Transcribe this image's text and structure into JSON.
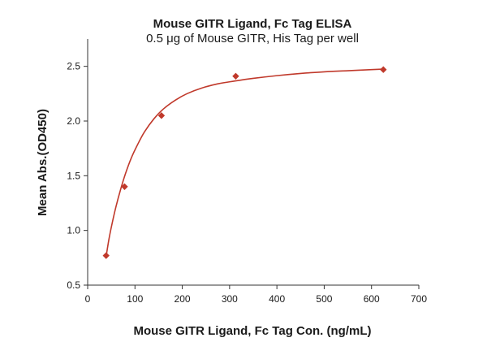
{
  "chart_data": {
    "type": "scatter",
    "title": "Mouse GITR Ligand, Fc Tag ELISA",
    "subtitle": "0.5 μg of Mouse GITR, His Tag per well",
    "xlabel": "Mouse GITR Ligand, Fc Tag Con. (ng/mL)",
    "ylabel": "Mean Abs.(OD450)",
    "xlim": [
      0,
      700
    ],
    "ylim": [
      0.5,
      2.75
    ],
    "x_ticks": [
      0,
      100,
      200,
      300,
      400,
      500,
      600,
      700
    ],
    "y_ticks": [
      0.5,
      1.0,
      1.5,
      2.0,
      2.5
    ],
    "x_tick_labels": [
      "0",
      "100",
      "200",
      "300",
      "400",
      "500",
      "600",
      "700"
    ],
    "y_tick_labels": [
      "0.5",
      "1.0",
      "1.5",
      "2.0",
      "2.5"
    ],
    "grid": false,
    "series": [
      {
        "x": [
          39,
          78,
          156,
          313,
          625
        ],
        "y": [
          0.77,
          1.4,
          2.05,
          2.41,
          2.47
        ]
      }
    ],
    "fit_curve": {
      "x": [
        39,
        45,
        52,
        60,
        70,
        80,
        92,
        105,
        120,
        140,
        160,
        185,
        210,
        240,
        275,
        310,
        350,
        400,
        450,
        500,
        550,
        600,
        625
      ],
      "y": [
        0.76,
        0.92,
        1.07,
        1.22,
        1.38,
        1.52,
        1.66,
        1.78,
        1.9,
        2.02,
        2.11,
        2.19,
        2.25,
        2.3,
        2.34,
        2.365,
        2.39,
        2.415,
        2.435,
        2.45,
        2.46,
        2.47,
        2.475
      ]
    },
    "colors": {
      "series": "#c0392b",
      "curve": "#c0392b",
      "axis": "#333333",
      "text": "#1a1a1a"
    }
  }
}
